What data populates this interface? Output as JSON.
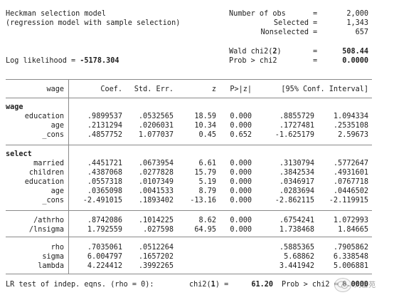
{
  "header": {
    "title": "Heckman selection model",
    "subtitle": "(regression model with sample selection)",
    "nobs_label": "Number of obs",
    "nobs_value": "2,000",
    "selected_label": "Selected",
    "selected_value": "1,343",
    "nonselected_label": "Nonselected",
    "nonselected_value": "657",
    "wald_label": "Wald chi2(",
    "wald_df": "2",
    "wald_close": ")",
    "wald_value": "508.44",
    "loglik_label": "Log likelihood = ",
    "loglik_value": "-5178.304",
    "prob_label": "Prob > chi2",
    "prob_value": "0.0000",
    "equals": "="
  },
  "columns": {
    "var": "wage",
    "coef": "Coef.",
    "se": "Std. Err.",
    "z": "z",
    "p": "P>|z|",
    "ci": "[95% Conf. Interval]"
  },
  "sections": {
    "wage": {
      "title": "wage",
      "rows": [
        {
          "name": "education",
          "coef": ".9899537",
          "se": ".0532565",
          "z": "18.59",
          "p": "0.000",
          "lo": ".8855729",
          "hi": "1.094334"
        },
        {
          "name": "age",
          "coef": ".2131294",
          "se": ".0206031",
          "z": "10.34",
          "p": "0.000",
          "lo": ".1727481",
          "hi": ".2535108"
        },
        {
          "name": "_cons",
          "coef": ".4857752",
          "se": "1.077037",
          "z": "0.45",
          "p": "0.652",
          "lo": "-1.625179",
          "hi": "2.59673"
        }
      ]
    },
    "select": {
      "title": "select",
      "rows": [
        {
          "name": "married",
          "coef": ".4451721",
          "se": ".0673954",
          "z": "6.61",
          "p": "0.000",
          "lo": ".3130794",
          "hi": ".5772647"
        },
        {
          "name": "children",
          "coef": ".4387068",
          "se": ".0277828",
          "z": "15.79",
          "p": "0.000",
          "lo": ".3842534",
          "hi": ".4931601"
        },
        {
          "name": "education",
          "coef": ".0557318",
          "se": ".0107349",
          "z": "5.19",
          "p": "0.000",
          "lo": ".0346917",
          "hi": ".0767718"
        },
        {
          "name": "age",
          "coef": ".0365098",
          "se": ".0041533",
          "z": "8.79",
          "p": "0.000",
          "lo": ".0283694",
          "hi": ".0446502"
        },
        {
          "name": "_cons",
          "coef": "-2.491015",
          "se": ".1893402",
          "z": "-13.16",
          "p": "0.000",
          "lo": "-2.862115",
          "hi": "-2.119915"
        }
      ]
    },
    "aux": {
      "rows": [
        {
          "name": "/athrho",
          "coef": ".8742086",
          "se": ".1014225",
          "z": "8.62",
          "p": "0.000",
          "lo": ".6754241",
          "hi": "1.072993"
        },
        {
          "name": "/lnsigma",
          "coef": "1.792559",
          "se": ".027598",
          "z": "64.95",
          "p": "0.000",
          "lo": "1.738468",
          "hi": "1.84665"
        }
      ]
    },
    "derived": {
      "rows": [
        {
          "name": "rho",
          "coef": ".7035061",
          "se": ".0512264",
          "lo": ".5885365",
          "hi": ".7905862"
        },
        {
          "name": "sigma",
          "coef": "6.004797",
          "se": ".1657202",
          "lo": "5.68862",
          "hi": "6.338548"
        },
        {
          "name": "lambda",
          "coef": "4.224412",
          "se": ".3992265",
          "lo": "3.441942",
          "hi": "5.006881"
        }
      ]
    }
  },
  "footer": {
    "lr_text": "LR test of indep. eqns. (rho = 0):",
    "chi2_label": "chi2(",
    "chi2_df": "1",
    "chi2_close": ") =",
    "chi2_value": "61.20",
    "prob_label": "Prob > chi2 =",
    "prob_value": "0.0000"
  },
  "watermark": {
    "text": "刘雷苑"
  }
}
